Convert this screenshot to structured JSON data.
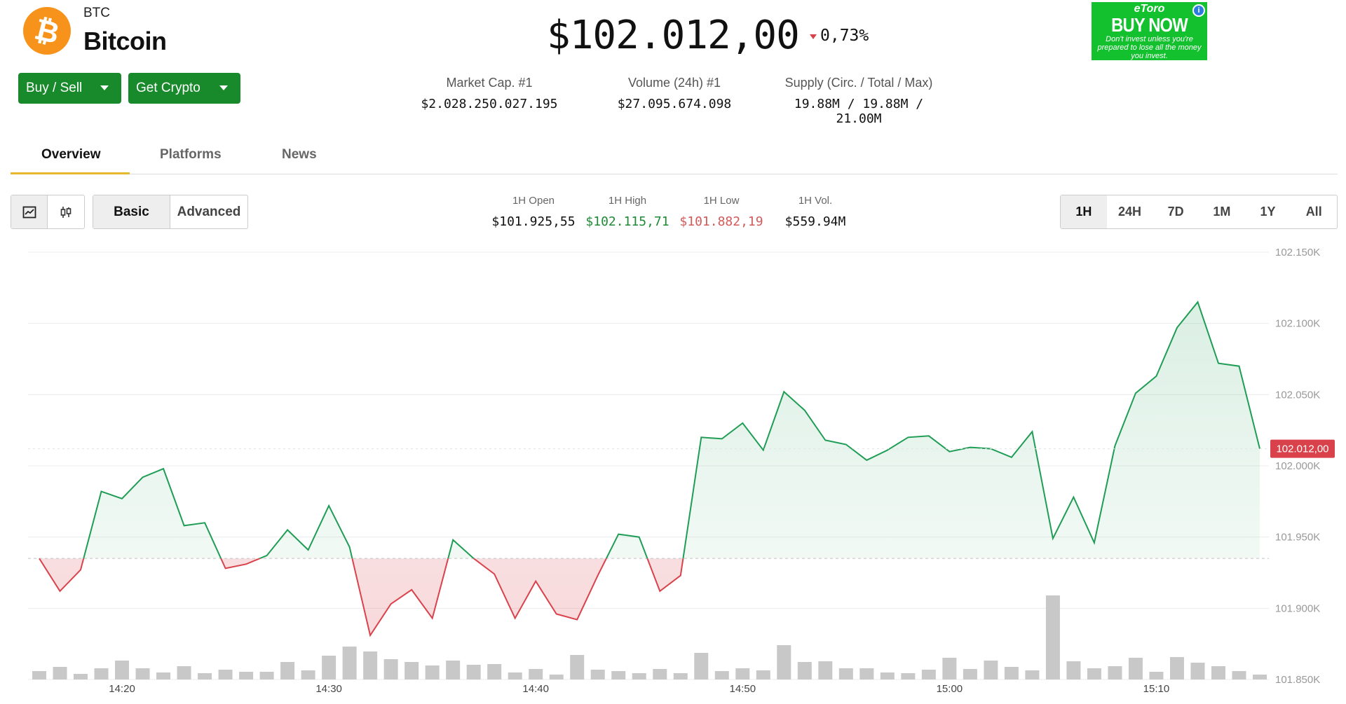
{
  "coin": {
    "symbol": "BTC",
    "name": "Bitcoin",
    "logo_glyph": "₿",
    "logo_color": "#f7931a",
    "price": "$102.012,00",
    "change": "0,73%",
    "change_direction": "down"
  },
  "actions": {
    "buy_sell": "Buy / Sell",
    "get_crypto": "Get Crypto",
    "button_color": "#188a2b"
  },
  "stats": [
    {
      "label": "Market Cap. #1",
      "value": "$2.028.250.027.195"
    },
    {
      "label": "Volume (24h) #1",
      "value": "$27.095.674.098"
    },
    {
      "label": "Supply (Circ. / Total / Max)",
      "value": "19.88M / 19.88M / 21.00M"
    }
  ],
  "ad": {
    "brand": "eToro",
    "headline": "BUY NOW",
    "disclaimer": "Don't invest unless you're prepared to lose all the money you invest.",
    "info_icon": "i"
  },
  "tabs": [
    {
      "label": "Overview",
      "active": true
    },
    {
      "label": "Platforms",
      "active": false
    },
    {
      "label": "News",
      "active": false
    }
  ],
  "chart_controls": {
    "chart_types": [
      "line-chart-icon",
      "candlestick-icon"
    ],
    "modes": [
      "Basic",
      "Advanced"
    ],
    "active_mode": "Basic"
  },
  "ohlc": {
    "open": {
      "label": "1H Open",
      "value": "$101.925,55"
    },
    "high": {
      "label": "1H High",
      "value": "$102.115,71"
    },
    "low": {
      "label": "1H Low",
      "value": "$101.882,19"
    },
    "vol": {
      "label": "1H Vol.",
      "value": "$559.94M"
    }
  },
  "ranges": [
    "1H",
    "24H",
    "7D",
    "1M",
    "1Y",
    "All"
  ],
  "active_range": "1H",
  "chart_data": {
    "type": "line",
    "x": [
      "14:16",
      "14:17",
      "14:18",
      "14:19",
      "14:20",
      "14:21",
      "14:22",
      "14:23",
      "14:24",
      "14:25",
      "14:26",
      "14:27",
      "14:28",
      "14:29",
      "14:30",
      "14:31",
      "14:32",
      "14:33",
      "14:34",
      "14:35",
      "14:36",
      "14:37",
      "14:38",
      "14:39",
      "14:40",
      "14:41",
      "14:42",
      "14:43",
      "14:44",
      "14:45",
      "14:46",
      "14:47",
      "14:48",
      "14:49",
      "14:50",
      "14:51",
      "14:52",
      "14:53",
      "14:54",
      "14:55",
      "14:56",
      "14:57",
      "14:58",
      "14:59",
      "15:00",
      "15:01",
      "15:02",
      "15:03",
      "15:04",
      "15:05",
      "15:06",
      "15:07",
      "15:08",
      "15:09",
      "15:10",
      "15:11",
      "15:12",
      "15:13",
      "15:14",
      "15:15"
    ],
    "values": [
      101935,
      101912,
      101927,
      101982,
      101977,
      101992,
      101998,
      101958,
      101960,
      101928,
      101931,
      101937,
      101955,
      101941,
      101972,
      101943,
      101881,
      101903,
      101913,
      101893,
      101948,
      101935,
      101924,
      101893,
      101919,
      101896,
      101892,
      101923,
      101952,
      101950,
      101912,
      101923,
      102020,
      102019,
      102030,
      102011,
      102052,
      102039,
      102018,
      102015,
      102004,
      102011,
      102020,
      102021,
      102010,
      102013,
      102012,
      102006,
      102024,
      101949,
      101978,
      101946,
      102014,
      102051,
      102063,
      102097,
      102115,
      102072,
      102070,
      102012
    ],
    "volume": [
      12,
      18,
      8,
      16,
      27,
      16,
      10,
      19,
      9,
      14,
      11,
      11,
      25,
      13,
      34,
      47,
      40,
      29,
      25,
      20,
      27,
      21,
      22,
      10,
      15,
      7,
      35,
      14,
      12,
      9,
      15,
      9,
      38,
      12,
      16,
      13,
      49,
      25,
      26,
      16,
      16,
      10,
      9,
      14,
      31,
      15,
      27,
      18,
      13,
      120,
      26,
      16,
      19,
      31,
      11,
      32,
      24,
      19,
      12,
      7
    ],
    "baseline": 101935,
    "last_label": "102.012,00",
    "x_ticks": [
      "14:20",
      "14:30",
      "14:40",
      "14:50",
      "15:00",
      "15:10"
    ],
    "y_ticks": [
      "102.150K",
      "102.100K",
      "102.050K",
      "102.000K",
      "101.950K",
      "101.900K",
      "101.850K"
    ],
    "ylim": [
      101850,
      102150
    ],
    "grid": true,
    "up_color": "#1f9d55",
    "down_color": "#d9424b"
  }
}
